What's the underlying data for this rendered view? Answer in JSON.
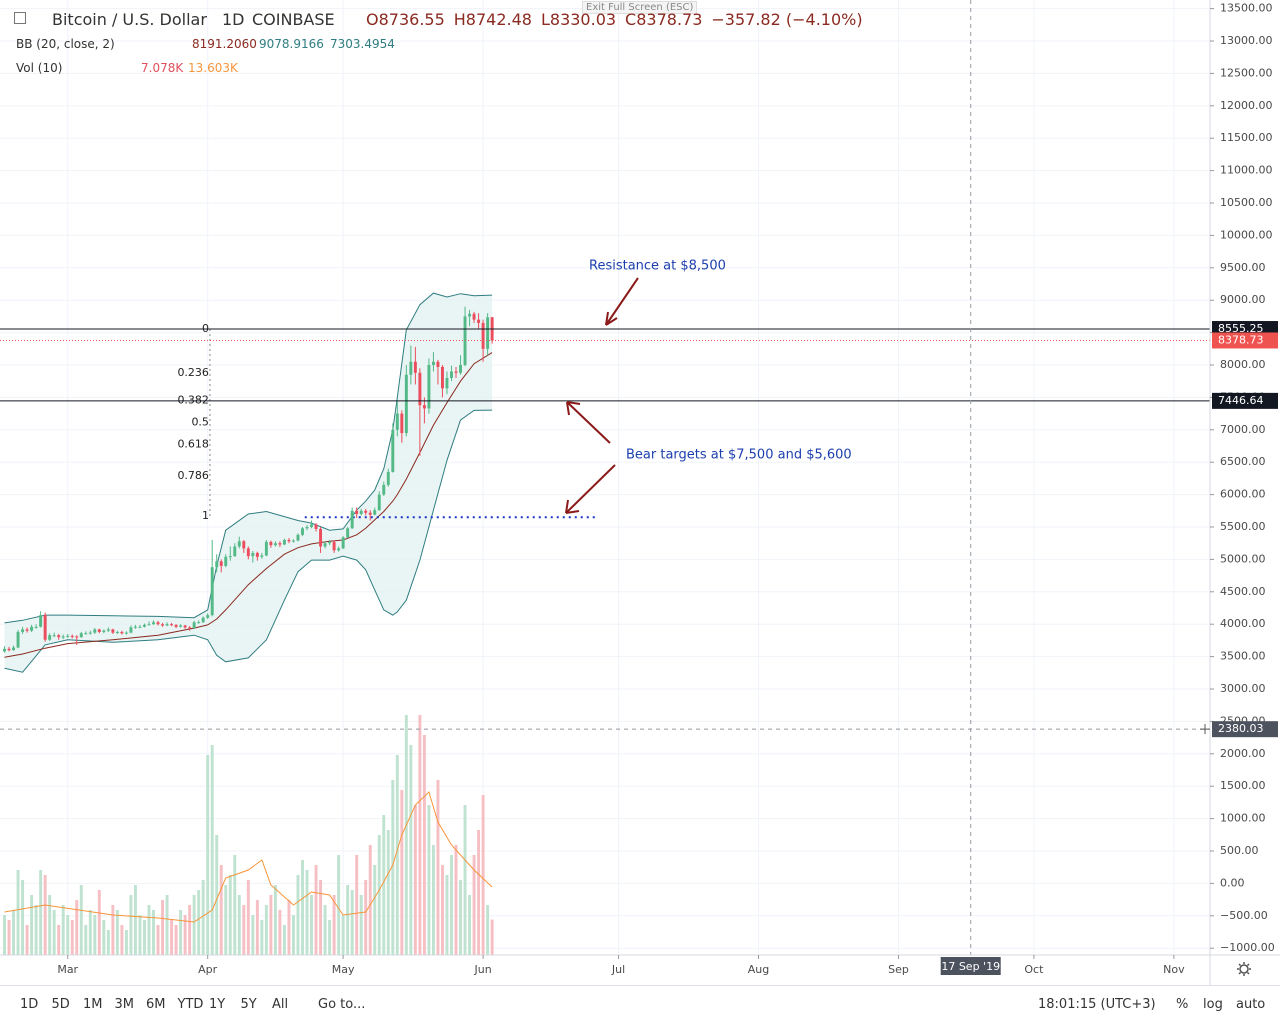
{
  "ui": {
    "tooltip": "Exit Full Screen (ESC)",
    "symbol": "Bitcoin / U.S. Dollar",
    "interval": "1D",
    "exchange": "COINBASE",
    "ohlc": [
      "O8736.55",
      "H8742.48",
      "L8330.03",
      "C8378.73",
      "−357.82 (−4.10%)"
    ],
    "bb_label": "BB (20, close, 2)",
    "bb_values": [
      "8191.2060",
      "9078.9166",
      "7303.4954"
    ],
    "vol_label": "Vol (10)",
    "vol_values": [
      "7.078K",
      "13.603K"
    ],
    "ranges": [
      "1D",
      "5D",
      "1M",
      "3M",
      "6M",
      "YTD",
      "1Y",
      "5Y",
      "All"
    ],
    "goto": "Go to...",
    "clock": "18:01:15 (UTC+3)",
    "scale_buttons": [
      "%",
      "log",
      "auto"
    ]
  },
  "chart_data": {
    "type": "candlestick",
    "up_color": "#53b987",
    "down_color": "#eb4d5c",
    "x": [
      46,
      47,
      48,
      49,
      50,
      51,
      52,
      53,
      54,
      55,
      56,
      57,
      58,
      59,
      60,
      61,
      62,
      63,
      64,
      65,
      66,
      67,
      68,
      69,
      70,
      71,
      72,
      73,
      74,
      75,
      76,
      77,
      78,
      79,
      80,
      81,
      82,
      83,
      84,
      85,
      86,
      87,
      88,
      89,
      90,
      91,
      92,
      93,
      94,
      95,
      96,
      97,
      98,
      99,
      100,
      101,
      102,
      103,
      104,
      105,
      106,
      107,
      108,
      109,
      110,
      111,
      112,
      113,
      114,
      115,
      116,
      117,
      118,
      119,
      120,
      121,
      122,
      123,
      124,
      125,
      126,
      127,
      128,
      129,
      130,
      131,
      132,
      133,
      134,
      135,
      136,
      137,
      138,
      139,
      140,
      141,
      142,
      143,
      144,
      145,
      146,
      147,
      148,
      149,
      150,
      151,
      152,
      153,
      154
    ],
    "candles": [
      [
        3580,
        3660,
        3560,
        3620
      ],
      [
        3620,
        3650,
        3580,
        3600
      ],
      [
        3600,
        3670,
        3590,
        3640
      ],
      [
        3640,
        3910,
        3630,
        3880
      ],
      [
        3880,
        3960,
        3850,
        3920
      ],
      [
        3920,
        3950,
        3870,
        3900
      ],
      [
        3900,
        3990,
        3880,
        3960
      ],
      [
        3960,
        4000,
        3930,
        3960
      ],
      [
        3960,
        4200,
        3950,
        4140
      ],
      [
        4140,
        4180,
        3730,
        3760
      ],
      [
        3760,
        3860,
        3740,
        3830
      ],
      [
        3830,
        3870,
        3800,
        3830
      ],
      [
        3830,
        3850,
        3760,
        3800
      ],
      [
        3800,
        3840,
        3770,
        3810
      ],
      [
        3810,
        3850,
        3790,
        3820
      ],
      [
        3820,
        3840,
        3780,
        3810
      ],
      [
        3810,
        3830,
        3680,
        3800
      ],
      [
        3800,
        3880,
        3790,
        3860
      ],
      [
        3860,
        3890,
        3840,
        3860
      ],
      [
        3860,
        3900,
        3840,
        3870
      ],
      [
        3870,
        3940,
        3850,
        3920
      ],
      [
        3920,
        3930,
        3860,
        3880
      ],
      [
        3880,
        3920,
        3860,
        3900
      ],
      [
        3900,
        3950,
        3880,
        3920
      ],
      [
        3920,
        3930,
        3850,
        3870
      ],
      [
        3870,
        3900,
        3850,
        3880
      ],
      [
        3880,
        3900,
        3840,
        3860
      ],
      [
        3860,
        3890,
        3840,
        3870
      ],
      [
        3870,
        3980,
        3860,
        3950
      ],
      [
        3950,
        3990,
        3930,
        3960
      ],
      [
        3960,
        3990,
        3940,
        3960
      ],
      [
        3960,
        4010,
        3950,
        3990
      ],
      [
        3990,
        4040,
        3980,
        4000
      ],
      [
        4000,
        4060,
        3990,
        4030
      ],
      [
        4030,
        4050,
        3980,
        4000
      ],
      [
        4000,
        4020,
        3960,
        3980
      ],
      [
        3980,
        4030,
        3970,
        4000
      ],
      [
        4000,
        4020,
        3970,
        3990
      ],
      [
        3990,
        4000,
        3940,
        3960
      ],
      [
        3960,
        4000,
        3950,
        3980
      ],
      [
        3980,
        3990,
        3930,
        3950
      ],
      [
        3950,
        3970,
        3900,
        3940
      ],
      [
        3940,
        4050,
        3930,
        4030
      ],
      [
        4030,
        4060,
        4010,
        4030
      ],
      [
        4030,
        4120,
        4020,
        4100
      ],
      [
        4100,
        4170,
        4080,
        4140
      ],
      [
        4140,
        5300,
        4120,
        4880
      ],
      [
        4880,
        5080,
        4800,
        4970
      ],
      [
        4970,
        5000,
        4800,
        4900
      ],
      [
        4900,
        5080,
        4880,
        5040
      ],
      [
        5040,
        5200,
        4980,
        5050
      ],
      [
        5050,
        5250,
        5040,
        5200
      ],
      [
        5200,
        5350,
        5170,
        5280
      ],
      [
        5280,
        5300,
        5100,
        5170
      ],
      [
        5170,
        5200,
        5000,
        5050
      ],
      [
        5050,
        5130,
        4950,
        5100
      ],
      [
        5100,
        5120,
        4980,
        5040
      ],
      [
        5040,
        5100,
        5010,
        5060
      ],
      [
        5060,
        5300,
        5050,
        5270
      ],
      [
        5270,
        5290,
        5180,
        5220
      ],
      [
        5220,
        5280,
        5200,
        5250
      ],
      [
        5250,
        5280,
        5190,
        5230
      ],
      [
        5230,
        5320,
        5220,
        5300
      ],
      [
        5300,
        5330,
        5250,
        5280
      ],
      [
        5280,
        5310,
        5260,
        5290
      ],
      [
        5290,
        5400,
        5280,
        5380
      ],
      [
        5380,
        5500,
        5360,
        5480
      ],
      [
        5480,
        5530,
        5450,
        5500
      ],
      [
        5500,
        5600,
        5480,
        5540
      ],
      [
        5540,
        5560,
        5430,
        5470
      ],
      [
        5470,
        5500,
        5100,
        5200
      ],
      [
        5200,
        5280,
        5170,
        5250
      ],
      [
        5250,
        5300,
        5220,
        5270
      ],
      [
        5270,
        5290,
        5100,
        5140
      ],
      [
        5140,
        5200,
        5120,
        5170
      ],
      [
        5170,
        5360,
        5160,
        5340
      ],
      [
        5340,
        5500,
        5330,
        5480
      ],
      [
        5480,
        5800,
        5470,
        5750
      ],
      [
        5750,
        5800,
        5640,
        5700
      ],
      [
        5700,
        5780,
        5680,
        5750
      ],
      [
        5750,
        5780,
        5680,
        5720
      ],
      [
        5720,
        5760,
        5600,
        5690
      ],
      [
        5690,
        5800,
        5680,
        5760
      ],
      [
        5760,
        6050,
        5750,
        6000
      ],
      [
        6000,
        6200,
        5980,
        6150
      ],
      [
        6150,
        6400,
        6120,
        6350
      ],
      [
        6350,
        7100,
        6340,
        7000
      ],
      [
        7000,
        7450,
        6900,
        7250
      ],
      [
        7250,
        7300,
        6800,
        6950
      ],
      [
        6950,
        8000,
        6900,
        7850
      ],
      [
        7850,
        8300,
        7700,
        8050
      ],
      [
        8050,
        8280,
        7700,
        7880
      ],
      [
        7880,
        7950,
        6600,
        7380
      ],
      [
        7380,
        7500,
        7100,
        7330
      ],
      [
        7330,
        8100,
        7250,
        8000
      ],
      [
        8000,
        8200,
        7900,
        8050
      ],
      [
        8050,
        8080,
        7700,
        7970
      ],
      [
        7970,
        8000,
        7500,
        7640
      ],
      [
        7640,
        7900,
        7550,
        7800
      ],
      [
        7800,
        7990,
        7750,
        7900
      ],
      [
        7900,
        7970,
        7800,
        7880
      ],
      [
        7880,
        8150,
        7850,
        8000
      ],
      [
        8000,
        8900,
        7980,
        8750
      ],
      [
        8750,
        8850,
        8600,
        8790
      ],
      [
        8790,
        8820,
        8650,
        8700
      ],
      [
        8700,
        8800,
        8550,
        8650
      ],
      [
        8650,
        8700,
        8050,
        8250
      ],
      [
        8250,
        8800,
        8150,
        8736.55
      ],
      [
        8736.55,
        8742.48,
        8330.03,
        8378.73
      ]
    ],
    "bollinger": {
      "upper_color": "#2f7d80",
      "basis_color": "#8b2a20",
      "fill": "#e3f1f1",
      "x": [
        46,
        50,
        55,
        60,
        70,
        80,
        88,
        91,
        93,
        95,
        100,
        104,
        108,
        111,
        114,
        118,
        121,
        124,
        126,
        128,
        130,
        132,
        133,
        135,
        138,
        141,
        144,
        147,
        150,
        154
      ],
      "upper": [
        4020,
        4060,
        4140,
        4140,
        4130,
        4120,
        4100,
        4220,
        4900,
        5450,
        5700,
        5740,
        5660,
        5600,
        5560,
        5450,
        5470,
        5760,
        5900,
        6070,
        6400,
        7000,
        7500,
        8540,
        8930,
        9110,
        9050,
        9100,
        9070,
        9078.9166
      ],
      "basis": [
        3490,
        3540,
        3630,
        3700,
        3760,
        3830,
        3940,
        3990,
        4080,
        4220,
        4610,
        4860,
        5080,
        5180,
        5240,
        5280,
        5300,
        5380,
        5480,
        5610,
        5740,
        5900,
        6000,
        6240,
        6650,
        7070,
        7420,
        7750,
        8020,
        8191.206
      ],
      "lower": [
        3320,
        3260,
        3680,
        3760,
        3720,
        3760,
        3830,
        3760,
        3520,
        3420,
        3480,
        3760,
        4370,
        4810,
        4990,
        4990,
        5050,
        4990,
        4840,
        4530,
        4220,
        4140,
        4190,
        4370,
        4990,
        5760,
        6530,
        7150,
        7300,
        7303.4954
      ]
    },
    "volume": {
      "ylim": [
        0,
        191
      ],
      "up_color": "#bfe3d0",
      "down_color": "#f6bfc4",
      "ma_color": "#f7953b",
      "values": [
        8,
        7,
        9,
        17,
        15,
        6,
        12,
        10,
        17,
        16,
        12,
        9,
        6,
        10,
        8,
        7,
        11,
        14,
        6,
        9,
        8,
        13,
        7,
        5,
        10,
        9,
        6,
        5,
        12,
        14,
        8,
        7,
        10,
        9,
        6,
        11,
        12,
        7,
        6,
        9,
        8,
        10,
        12,
        13,
        15,
        40,
        42,
        24,
        18,
        14,
        16,
        20,
        12,
        10,
        15,
        8,
        11,
        7,
        10,
        12,
        14,
        9,
        6,
        11,
        8,
        16,
        19,
        17,
        12,
        18,
        15,
        10,
        7,
        12,
        20,
        8,
        14,
        13,
        20,
        12,
        15,
        22,
        18,
        24,
        28,
        25,
        35,
        40,
        33,
        48,
        42,
        30,
        48,
        44,
        30,
        22,
        35,
        18,
        16,
        20,
        22,
        15,
        30,
        12,
        20,
        25,
        32,
        10,
        7.078
      ],
      "ma_x": [
        46,
        55,
        70,
        80,
        88,
        92,
        95,
        100,
        103,
        105,
        110,
        114,
        118,
        121,
        126,
        129,
        132,
        134,
        137,
        140,
        142,
        145,
        148,
        150,
        154
      ],
      "ma_values": [
        8.6,
        10,
        8,
        7.4,
        6.6,
        9,
        15.4,
        17,
        19,
        14,
        10,
        12.6,
        12,
        8,
        8.6,
        13,
        18,
        24,
        30,
        32.6,
        26.6,
        22,
        19,
        17,
        13.603
      ]
    },
    "xlim": [
      45,
      313
    ],
    "xticks": [
      {
        "value": 60,
        "label": "Mar"
      },
      {
        "value": 91,
        "label": "Apr"
      },
      {
        "value": 121,
        "label": "May"
      },
      {
        "value": 152,
        "label": "Jun"
      },
      {
        "value": 182,
        "label": "Jul"
      },
      {
        "value": 213,
        "label": "Aug"
      },
      {
        "value": 244,
        "label": "Sep"
      },
      {
        "value": 274,
        "label": "Oct"
      },
      {
        "value": 305,
        "label": "Nov"
      }
    ],
    "ylim": [
      -1105,
      13633
    ],
    "yticks": [
      {
        "value": 13500,
        "label": "13500.00"
      },
      {
        "value": 13000,
        "label": "13000.00"
      },
      {
        "value": 12500,
        "label": "12500.00"
      },
      {
        "value": 12000,
        "label": "12000.00"
      },
      {
        "value": 11500,
        "label": "11500.00"
      },
      {
        "value": 11000,
        "label": "11000.00"
      },
      {
        "value": 10500,
        "label": "10500.00"
      },
      {
        "value": 10000,
        "label": "10000.00"
      },
      {
        "value": 9500,
        "label": "9500.00"
      },
      {
        "value": 9000,
        "label": "9000.00"
      },
      {
        "value": 8500,
        "label": "8500.00"
      },
      {
        "value": 8000,
        "label": "8000.00"
      },
      {
        "value": 7500,
        "label": "7500.00"
      },
      {
        "value": 7000,
        "label": "7000.00"
      },
      {
        "value": 6500,
        "label": "6500.00"
      },
      {
        "value": 6000,
        "label": "6000.00"
      },
      {
        "value": 5500,
        "label": "5500.00"
      },
      {
        "value": 5000,
        "label": "5000.00"
      },
      {
        "value": 4500,
        "label": "4500.00"
      },
      {
        "value": 4000,
        "label": "4000.00"
      },
      {
        "value": 3500,
        "label": "3500.00"
      },
      {
        "value": 3000,
        "label": "3000.00"
      },
      {
        "value": 2500,
        "label": "2500.00"
      },
      {
        "value": 2000,
        "label": "2000.00"
      },
      {
        "value": 1500,
        "label": "1500.00"
      },
      {
        "value": 1000,
        "label": "1000.00"
      },
      {
        "value": 500,
        "label": "500.00"
      },
      {
        "value": 0,
        "label": "0.00"
      },
      {
        "value": -500,
        "label": "−500.00"
      },
      {
        "value": -1000,
        "label": "−1000.00"
      }
    ],
    "grid": true,
    "price_lines": [
      {
        "value": 8555.25,
        "label": "8555.25",
        "color": "#131722",
        "style": "solid"
      },
      {
        "value": 8378.73,
        "label": "8378.73",
        "color": "#ef5350",
        "style": "dotted"
      },
      {
        "value": 7446.64,
        "label": "7446.64",
        "color": "#131722",
        "style": "solid"
      }
    ],
    "crosshair": {
      "x": {
        "value": 260,
        "label": "17 Sep '19"
      },
      "y": {
        "value": 2380.03,
        "label": "2380.03"
      }
    },
    "fibonacci": {
      "high": 8555.25,
      "low": 5670,
      "x": 91.5,
      "levels": [
        0,
        0.236,
        0.382,
        0.5,
        0.618,
        0.786,
        1
      ]
    },
    "target_line": {
      "value": 5650,
      "x": [
        112.5,
        176.8
      ],
      "color": "#1a33c8"
    },
    "annotations": [
      "Resistance at $8,500",
      "Bear targets at $7,500 and $5,600"
    ]
  }
}
